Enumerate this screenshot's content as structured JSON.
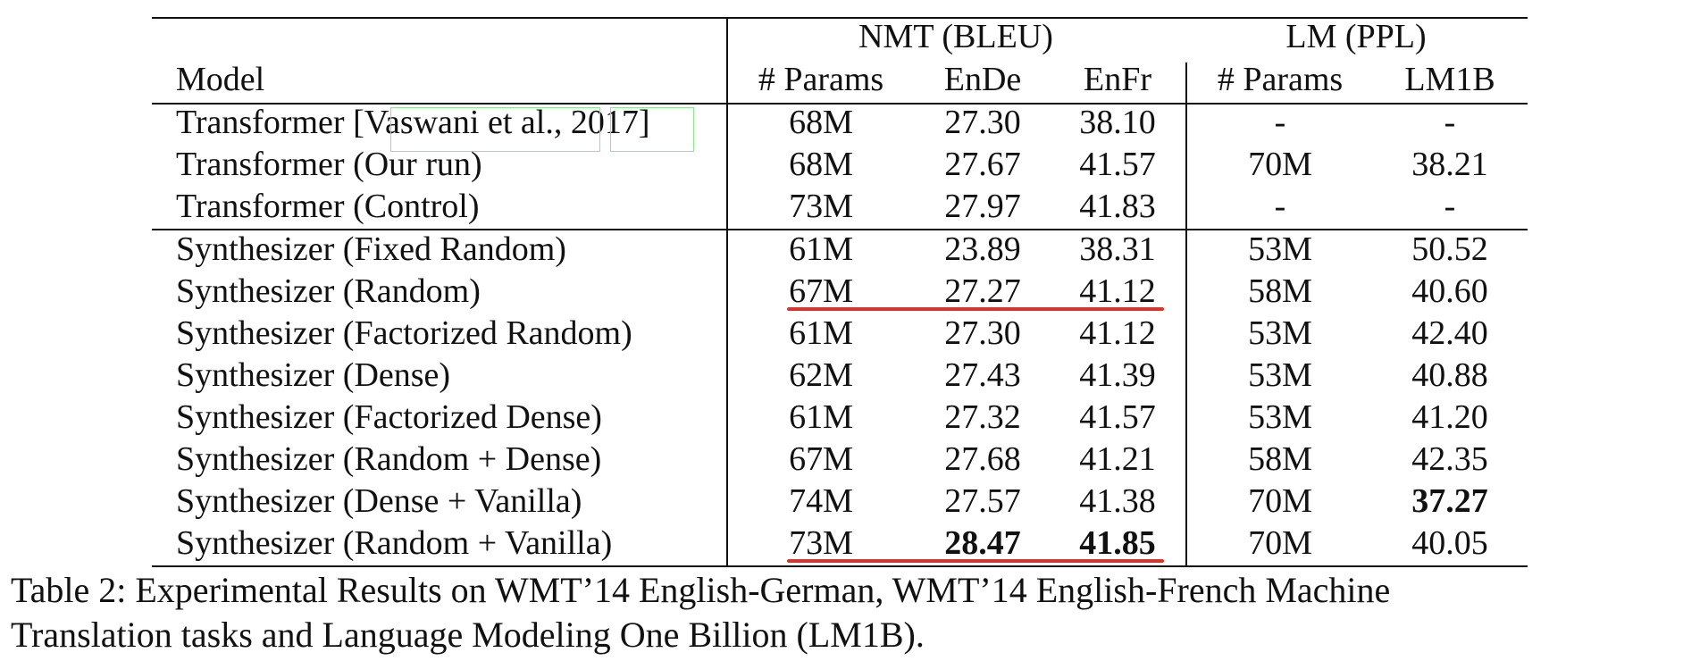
{
  "table": {
    "group_headers": {
      "nmt": "NMT (BLEU)",
      "lm": "LM (PPL)"
    },
    "column_headers": {
      "model": "Model",
      "nmt_params": "# Params",
      "ende": "EnDe",
      "enfr": "EnFr",
      "lm_params": "# Params",
      "lm1b": "LM1B"
    },
    "rows": [
      {
        "model_prefix": "Transformer [",
        "model_cite_author": "Vaswani et al.",
        "model_cite_sep": ", ",
        "model_cite_year": "2017",
        "model_suffix": "]",
        "nmt_params": "68M",
        "ende": "27.30",
        "enfr": "38.10",
        "lm_params": "-",
        "lm1b": "-"
      },
      {
        "model": "Transformer (Our run)",
        "nmt_params": "68M",
        "ende": "27.67",
        "enfr": "41.57",
        "lm_params": "70M",
        "lm1b": "38.21"
      },
      {
        "model": "Transformer (Control)",
        "nmt_params": "73M",
        "ende": "27.97",
        "enfr": "41.83",
        "lm_params": "-",
        "lm1b": "-"
      },
      {
        "model": "Synthesizer (Fixed Random)",
        "nmt_params": "61M",
        "ende": "23.89",
        "enfr": "38.31",
        "lm_params": "53M",
        "lm1b": "50.52"
      },
      {
        "model": "Synthesizer (Random)",
        "nmt_params": "67M",
        "ende": "27.27",
        "enfr": "41.12",
        "lm_params": "58M",
        "lm1b": "40.60"
      },
      {
        "model": "Synthesizer (Factorized Random)",
        "nmt_params": "61M",
        "ende": "27.30",
        "enfr": "41.12",
        "lm_params": "53M",
        "lm1b": "42.40"
      },
      {
        "model": "Synthesizer (Dense)",
        "nmt_params": "62M",
        "ende": "27.43",
        "enfr": "41.39",
        "lm_params": "53M",
        "lm1b": "40.88"
      },
      {
        "model": "Synthesizer (Factorized Dense)",
        "nmt_params": "61M",
        "ende": "27.32",
        "enfr": "41.57",
        "lm_params": "53M",
        "lm1b": "41.20"
      },
      {
        "model": "Synthesizer (Random + Dense)",
        "nmt_params": "67M",
        "ende": "27.68",
        "enfr": "41.21",
        "lm_params": "58M",
        "lm1b": "42.35"
      },
      {
        "model": "Synthesizer (Dense + Vanilla)",
        "nmt_params": "74M",
        "ende": "27.57",
        "enfr": "41.38",
        "lm_params": "70M",
        "lm1b": "37.27"
      },
      {
        "model": "Synthesizer (Random + Vanilla)",
        "nmt_params": "73M",
        "ende": "28.47",
        "enfr": "41.85",
        "lm_params": "70M",
        "lm1b": "40.05"
      }
    ],
    "bold_cells": [
      "Synthesizer (Dense + Vanilla) LM1B",
      "Synthesizer (Random + Vanilla) EnDe",
      "Synthesizer (Random + Vanilla) EnFr"
    ]
  },
  "annotations": {
    "underline_color": "#d9342b",
    "citation_box_color": "#8fe88f"
  },
  "caption": {
    "line1": "Table 2: Experimental Results on WMT’14 English-German, WMT’14 English-French Machine",
    "line2": "Translation tasks and Language Modeling One Billion (LM1B)."
  }
}
